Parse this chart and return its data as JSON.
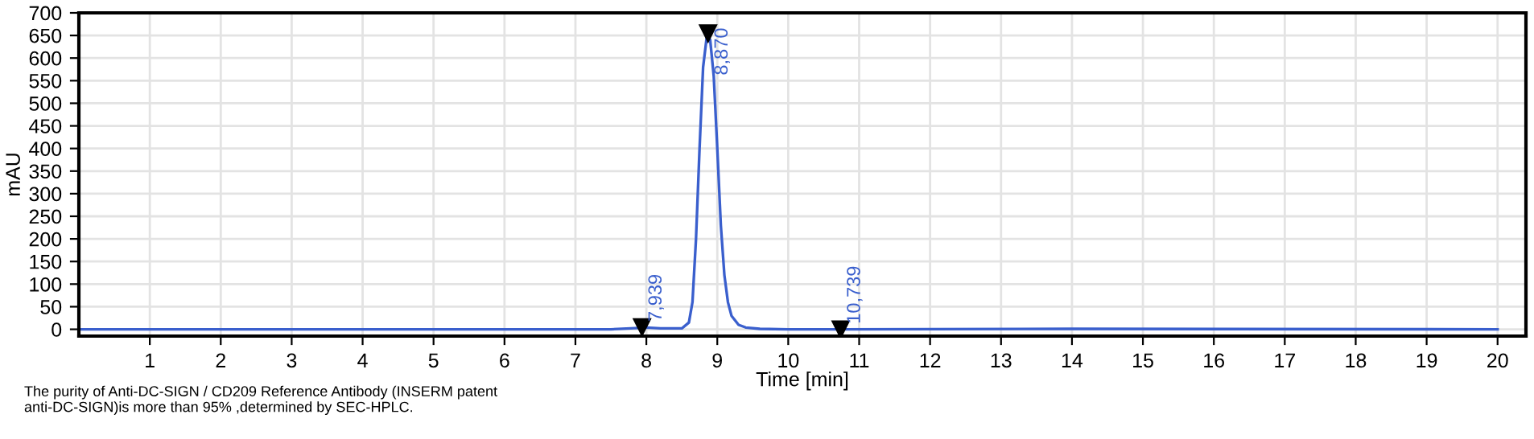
{
  "chart_data": {
    "type": "line",
    "xlabel": "Time [min]",
    "ylabel": "mAU",
    "x": [
      0,
      7.5,
      7.9,
      8.0,
      8.2,
      8.5,
      8.6,
      8.65,
      8.7,
      8.75,
      8.8,
      8.85,
      8.87,
      8.9,
      8.95,
      9.0,
      9.05,
      9.1,
      9.15,
      9.2,
      9.3,
      9.4,
      9.6,
      10,
      10.739,
      14,
      20
    ],
    "series": [
      {
        "color": "#3a5fcd",
        "values": [
          0,
          0,
          3,
          4,
          2,
          2,
          15,
          60,
          200,
          400,
          580,
          645,
          650,
          640,
          560,
          400,
          230,
          120,
          60,
          30,
          10,
          4,
          1,
          0,
          0,
          1,
          0
        ]
      }
    ],
    "xlim": [
      0,
      20.4
    ],
    "ylim": [
      -15,
      700
    ],
    "xticks": [
      1,
      2,
      3,
      4,
      5,
      6,
      7,
      8,
      9,
      10,
      11,
      12,
      13,
      14,
      15,
      16,
      17,
      18,
      19,
      20
    ],
    "yticks": [
      0,
      50,
      100,
      150,
      200,
      250,
      300,
      350,
      400,
      450,
      500,
      550,
      600,
      650,
      700
    ],
    "grid": true,
    "marker": "none",
    "line_style": "solid",
    "annotations": [
      {
        "text": "7,939",
        "x": 7.939,
        "y": 5
      },
      {
        "text": "8,870",
        "x": 8.87,
        "y": 655
      },
      {
        "text": "10,739",
        "x": 10.739,
        "y": 0
      },
      "The purity of Anti-DC-SIGN / CD209 Reference Antibody (INSERM patent\nanti-DC-SIGN)is more than 95% ,determined by SEC-HPLC."
    ]
  }
}
